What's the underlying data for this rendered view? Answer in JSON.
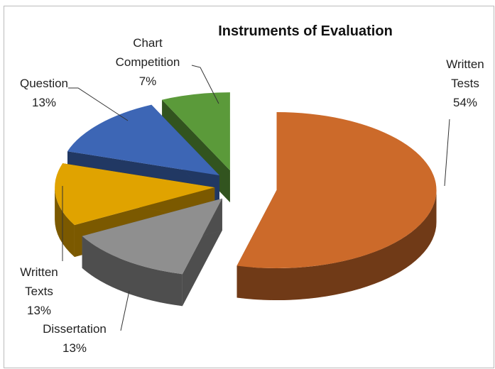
{
  "chart_data": {
    "type": "pie3d",
    "title": "Instruments of Evaluation",
    "categories": [
      "Written Tests",
      "Dissertation",
      "Written Texts",
      "Question",
      "Chart Competition"
    ],
    "values": [
      54,
      13,
      13,
      13,
      7
    ],
    "value_labels": [
      "54%",
      "13%",
      "13%",
      "13%",
      "7%"
    ],
    "colors": [
      "#cc6a2a",
      "#8f8f8f",
      "#e0a300",
      "#3d66b5",
      "#5b9a3a"
    ]
  }
}
